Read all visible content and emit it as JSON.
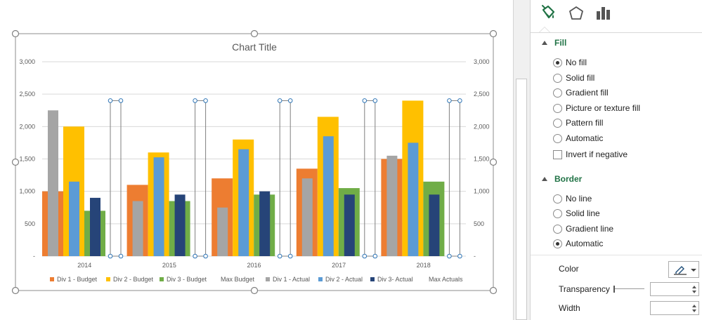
{
  "chart_data": {
    "type": "bar",
    "title": "Chart Title",
    "categories": [
      "2014",
      "2015",
      "2016",
      "2017",
      "2018"
    ],
    "ylim": [
      0,
      3000
    ],
    "left_axis_ticks": [
      "-",
      "500",
      "1,000",
      "1,500",
      "2,000",
      "2,500",
      "3,000"
    ],
    "right_axis_ticks": [
      "-",
      "500",
      "1,000",
      "1,500",
      "2,000",
      "2,500",
      "3,000"
    ],
    "grid": true,
    "legend_position": "bottom",
    "budget_series": [
      {
        "name": "Div 1 - Budget",
        "color": "#ed7d31",
        "values": [
          1000,
          1100,
          1200,
          1350,
          1500
        ]
      },
      {
        "name": "Div 2 - Budget",
        "color": "#ffc000",
        "values": [
          2000,
          1600,
          1800,
          2150,
          2400
        ]
      },
      {
        "name": "Div 3 - Budget",
        "color": "#70ad47",
        "values": [
          700,
          850,
          950,
          1050,
          1150
        ]
      },
      {
        "name": "Max Budget",
        "color": "none",
        "values": [
          2400,
          2400,
          2400,
          2400,
          2400
        ]
      }
    ],
    "actual_series": [
      {
        "name": "Div 1 - Actual",
        "color": "#a5a5a5",
        "values": [
          2250,
          850,
          750,
          1200,
          1550
        ]
      },
      {
        "name": "Div 2 - Actual",
        "color": "#5b9bd5",
        "values": [
          1150,
          1525,
          1650,
          1850,
          1750
        ]
      },
      {
        "name": "Div 3- Actual",
        "color": "#264478",
        "values": [
          900,
          950,
          1000,
          950,
          950
        ]
      },
      {
        "name": "Max Actuals",
        "color": "none",
        "values": [
          2400,
          2400,
          2400,
          2400,
          2400
        ]
      }
    ]
  },
  "pane": {
    "tabs": [
      {
        "name": "fill-line",
        "icon": "paint-bucket-icon",
        "color": "#217346"
      },
      {
        "name": "effects",
        "icon": "pentagon-icon"
      },
      {
        "name": "series-options",
        "icon": "bar-chart-icon"
      }
    ],
    "fill": {
      "label": "Fill",
      "options": [
        {
          "label": "No fill",
          "selected": true
        },
        {
          "label": "Solid fill",
          "selected": false
        },
        {
          "label": "Gradient fill",
          "selected": false
        },
        {
          "label": "Picture or texture fill",
          "selected": false
        },
        {
          "label": "Pattern fill",
          "selected": false
        },
        {
          "label": "Automatic",
          "selected": false
        }
      ],
      "invert_label": "Invert if negative",
      "invert_checked": false
    },
    "border": {
      "label": "Border",
      "options": [
        {
          "label": "No line",
          "selected": false
        },
        {
          "label": "Solid line",
          "selected": false
        },
        {
          "label": "Gradient line",
          "selected": false
        },
        {
          "label": "Automatic",
          "selected": true
        }
      ],
      "color_label": "Color",
      "transparency_label": "Transparency",
      "transparency_value": "",
      "width_label": "Width",
      "width_value": ""
    }
  }
}
